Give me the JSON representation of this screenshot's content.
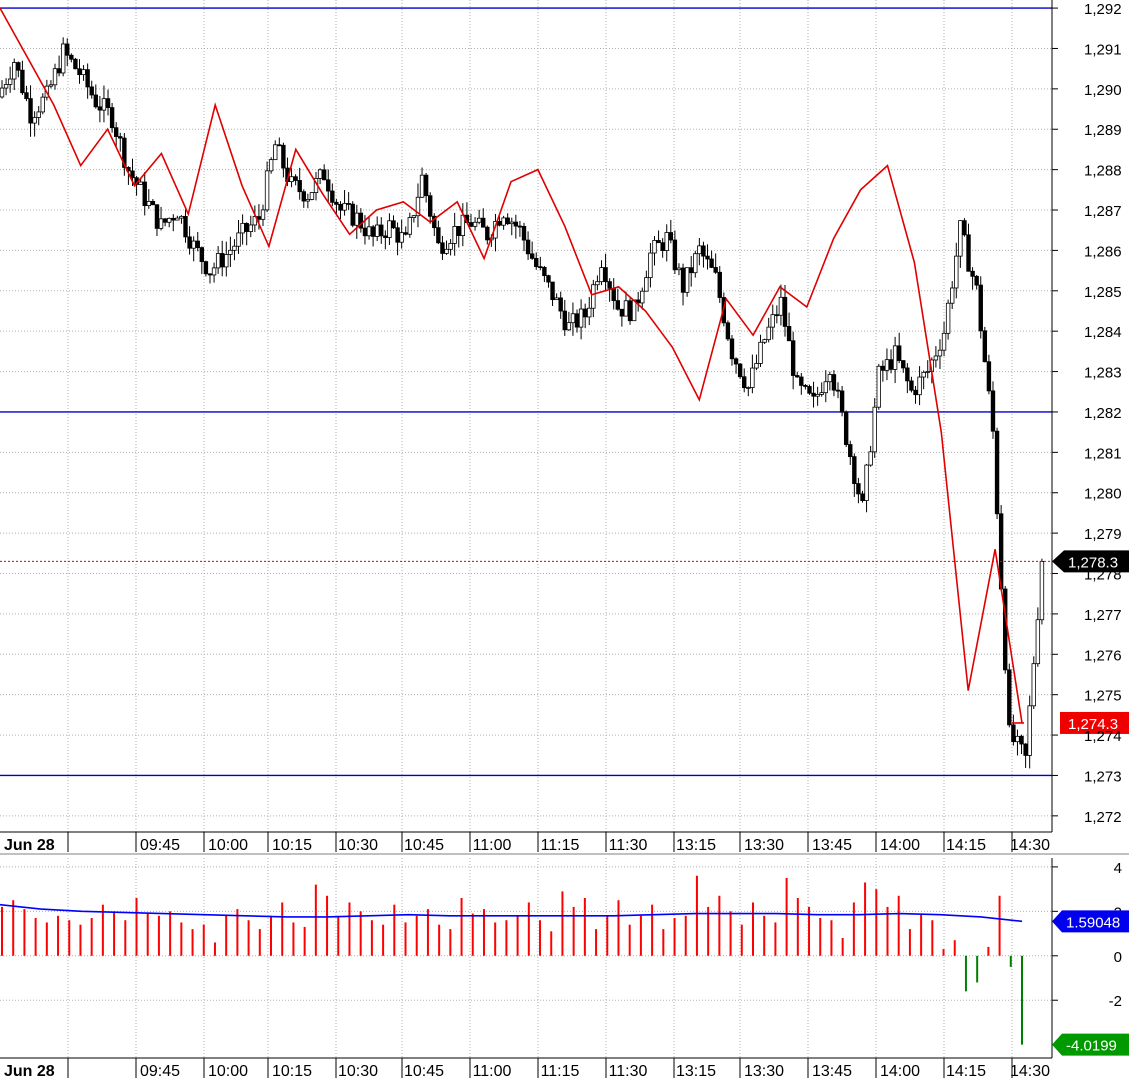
{
  "chart_data": [
    {
      "type": "candlestick",
      "title": "",
      "date_label": "Jun 28",
      "x_tick_labels": [
        "09:45",
        "10:00",
        "10:15",
        "10:30",
        "10:45",
        "11:00",
        "11:15",
        "11:30",
        "13:15",
        "13:30",
        "13:45",
        "14:00",
        "14:15",
        "14:30"
      ],
      "ylim": [
        1271.6,
        1292.2
      ],
      "y_ticks": [
        1272,
        1273,
        1274,
        1275,
        1276,
        1277,
        1278,
        1279,
        1280,
        1281,
        1282,
        1283,
        1284,
        1285,
        1286,
        1287,
        1288,
        1289,
        1290,
        1291,
        1292
      ],
      "y_tick_labels": [
        "1,272",
        "1,273",
        "1,274",
        "1,275",
        "1,276",
        "1,277",
        "1,278",
        "1,279",
        "1,280",
        "1,281",
        "1,282",
        "1,283",
        "1,284",
        "1,285",
        "1,286",
        "1,287",
        "1,288",
        "1,289",
        "1,290",
        "1,291",
        "1,292"
      ],
      "horizontal_lines": [
        1292.0,
        1282.0,
        1273.0
      ],
      "last_price": 1278.3,
      "last_price_label": "1,278.3",
      "red_line_last": 1274.3,
      "red_line_last_label": "1,274.3",
      "grid": true,
      "series": [
        {
          "kind": "price-candles",
          "close_path": [
            1289.8,
            1290.7,
            1289.4,
            1289.8,
            1290.9,
            1290.4,
            1289.7,
            1289.3,
            1288.0,
            1287.3,
            1286.6,
            1287.0,
            1286.1,
            1285.5,
            1285.9,
            1286.4,
            1286.8,
            1288.6,
            1287.6,
            1287.4,
            1287.9,
            1287.0,
            1286.8,
            1286.3,
            1286.6,
            1286.2,
            1287.8,
            1286.1,
            1286.5,
            1286.7,
            1286.4,
            1287.0,
            1286.5,
            1285.6,
            1284.9,
            1284.1,
            1284.4,
            1285.8,
            1284.6,
            1284.5,
            1285.9,
            1286.3,
            1285.1,
            1286.0,
            1285.3,
            1283.5,
            1282.6,
            1283.8,
            1284.7,
            1282.6,
            1282.2,
            1283.2,
            1281.4,
            1279.6,
            1282.9,
            1283.4,
            1282.5,
            1283.0,
            1284.0,
            1286.5,
            1285.0,
            1281.5,
            1274.0,
            1273.4,
            1278.3
          ]
        },
        {
          "kind": "red-line",
          "values": [
            1292.0,
            1290.8,
            1289.6,
            1288.1,
            1289.0,
            1287.6,
            1288.4,
            1286.9,
            1289.6,
            1287.6,
            1286.1,
            1288.5,
            1287.4,
            1286.4,
            1287.0,
            1287.2,
            1286.7,
            1287.2,
            1285.8,
            1287.7,
            1288.0,
            1286.6,
            1284.9,
            1285.1,
            1284.5,
            1283.6,
            1282.3,
            1284.8,
            1283.9,
            1285.1,
            1284.6,
            1286.3,
            1287.5,
            1288.1,
            1285.7,
            1281.5,
            1275.1,
            1278.6,
            1274.3
          ]
        }
      ]
    },
    {
      "type": "bar",
      "title": "",
      "date_label": "Jun 28",
      "x_tick_labels": [
        "09:45",
        "10:00",
        "10:15",
        "10:30",
        "10:45",
        "11:00",
        "11:15",
        "11:30",
        "13:15",
        "13:30",
        "13:45",
        "14:00",
        "14:15",
        "14:30"
      ],
      "ylim": [
        -4.6,
        4.4
      ],
      "y_ticks": [
        4,
        2,
        0,
        -2
      ],
      "y_tick_labels": [
        "4",
        "2",
        "0",
        "-2"
      ],
      "colors": {
        "positive": "#ff0000",
        "negative": "#008000",
        "average": "#0000ff"
      },
      "series": [
        {
          "name": "",
          "kind": "histogram",
          "values": [
            2.2,
            2.5,
            2.1,
            1.7,
            1.5,
            1.8,
            1.6,
            1.4,
            1.7,
            2.3,
            2.0,
            1.6,
            2.6,
            1.9,
            1.8,
            2.0,
            1.5,
            1.2,
            1.4,
            0.6,
            1.8,
            2.1,
            1.6,
            1.2,
            1.8,
            2.4,
            1.5,
            1.3,
            3.2,
            2.7,
            1.8,
            2.4,
            2.0,
            1.6,
            1.4,
            2.3,
            1.5,
            1.8,
            2.1,
            1.4,
            1.2,
            2.6,
            1.9,
            2.1,
            1.5,
            1.6,
            1.8,
            2.4,
            1.6,
            1.1,
            2.9,
            2.2,
            2.6,
            1.2,
            1.8,
            2.5,
            1.4,
            1.8,
            2.3,
            1.2,
            1.7,
            1.8,
            3.6,
            2.2,
            2.7,
            2.0,
            1.4,
            2.4,
            1.8,
            1.5,
            3.5,
            2.6,
            2.2,
            1.7,
            1.6,
            0.8,
            2.4,
            3.3,
            3.0,
            2.2,
            2.7,
            1.2,
            1.9,
            1.6,
            0.3,
            0.7,
            -1.6,
            -1.2,
            0.4,
            2.7,
            -0.5,
            -4.0
          ]
        },
        {
          "name": "",
          "kind": "average-line",
          "values": [
            2.3,
            2.1,
            2.0,
            1.95,
            1.9,
            1.85,
            1.8,
            1.75,
            1.75,
            1.8,
            1.85,
            1.8,
            1.8,
            1.8,
            1.8,
            1.8,
            1.85,
            1.9,
            1.9,
            1.9,
            1.85,
            1.85,
            1.9,
            1.85,
            1.75,
            1.55
          ],
          "last_label": "1.59048"
        }
      ],
      "last_value_label": "-4.0199"
    }
  ]
}
